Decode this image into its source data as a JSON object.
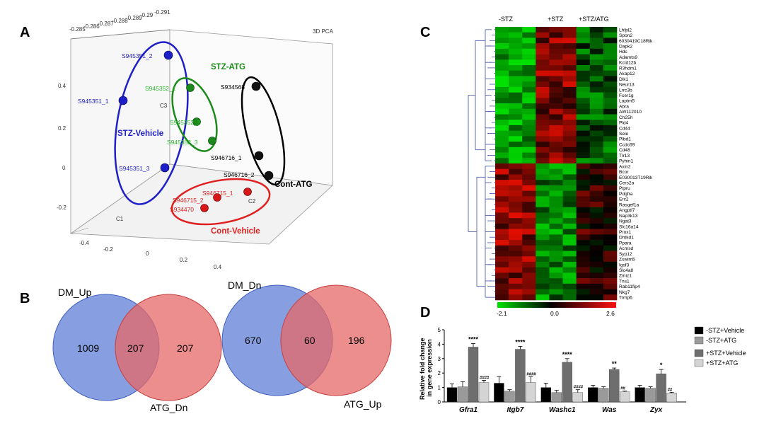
{
  "panels": {
    "A": "A",
    "B": "B",
    "C": "C",
    "D": "D"
  },
  "pca": {
    "title": "3D PCA",
    "top_ticks": [
      "-0.285",
      "-0.286",
      "-0.287",
      "-0.288",
      "-0.289",
      "-0.29",
      "-0.291"
    ],
    "left_ticks": [
      "0.4",
      "0.2",
      "0",
      "-0.2"
    ],
    "bottom_ticks": [
      "-0.4",
      "-0.2",
      "0",
      "0.2",
      "0.4"
    ],
    "axis_labels": {
      "c1": "C1",
      "c2": "C2",
      "c3": "C3"
    },
    "groups": [
      {
        "name": "STZ-Vehicle",
        "color": "#1f1fc8",
        "samples": [
          "S945351_2",
          "S945351_1",
          "S945351_3"
        ]
      },
      {
        "name": "STZ-ATG",
        "color": "#1a8a1a",
        "samples": [
          "S945352_1",
          "S945352_2",
          "S945352_3"
        ]
      },
      {
        "name": "Cont-ATG",
        "color": "#000000",
        "samples": [
          "S934568",
          "S946716_1",
          "S946716_2"
        ]
      },
      {
        "name": "Cont-Vehicle",
        "color": "#e02020",
        "samples": [
          "S946715_2",
          "S946715_1",
          "S934470"
        ]
      }
    ]
  },
  "venn": [
    {
      "left_label": "DM_Up",
      "right_label": "ATG_Dn",
      "left_only": "1009",
      "overlap": "207",
      "right_only": "207"
    },
    {
      "left_label": "DM_Dn",
      "right_label": "ATG_Up",
      "left_only": "670",
      "overlap": "60",
      "right_only": "196"
    }
  ],
  "heatmap": {
    "groups": [
      "-STZ",
      "+STZ",
      "+STZ/ATG"
    ],
    "genes": [
      "Lhfpl2",
      "Spon2",
      "6030419C18Rik",
      "Dapk2",
      "Hdc",
      "Adamts9",
      "Kctd12b",
      "R3hdm1",
      "Akap12",
      "Dlk1",
      "Neur13",
      "Lrrc3b",
      "Fcer1g",
      "Laptm5",
      "Abra",
      "AW112010",
      "Ch25h",
      "Pld4",
      "Cd44",
      "Sele",
      "Plbd1",
      "Ccdc69",
      "Cd48",
      "Tlr13",
      "Pyhin1",
      "Axin2",
      "Bcor",
      "E030013T19Rik",
      "Cers2a",
      "Ptpru",
      "Pdgfra",
      "Erc2",
      "Rasgef1a",
      "Angptl7",
      "Nap3k13",
      "Ngat3",
      "Slc16a14",
      "Prox1",
      "Dhtkd1",
      "Ppara",
      "Acmsd",
      "Syp12",
      "Zswim5",
      "Igsf3",
      "Slc4a8",
      "Zmiz1",
      "Tns1",
      "Rab11fip4",
      "Nkg7",
      "Trmp6"
    ],
    "scale_labels": [
      "-2.1",
      "0.0",
      "2.6"
    ],
    "colors": {
      "low": "#00e000",
      "mid": "#000000",
      "high": "#ff1010"
    }
  },
  "chart_data": {
    "type": "bar",
    "title": "",
    "xlabel": "",
    "ylabel": "Relative fold change in gene expression",
    "ylabel_lines": [
      "Relative fold change",
      "in gene expression"
    ],
    "ylim": [
      0,
      5
    ],
    "yticks": [
      "0",
      "1",
      "2",
      "3",
      "4",
      "5"
    ],
    "categories": [
      "Gfra1",
      "Itgb7",
      "Washc1",
      "Was",
      "Zyx"
    ],
    "series": [
      {
        "name": "-STZ+Vehicle",
        "color": "#000000",
        "values": [
          1.0,
          1.3,
          1.0,
          1.0,
          1.0
        ],
        "errors": [
          0.25,
          0.45,
          0.3,
          0.15,
          0.15
        ]
      },
      {
        "name": "-STZ+ATG",
        "color": "#9a9a9a",
        "values": [
          1.05,
          0.75,
          0.65,
          0.95,
          0.95
        ],
        "errors": [
          0.35,
          0.1,
          0.15,
          0.1,
          0.1
        ]
      },
      {
        "name": "+STZ+Vehicle",
        "color": "#6e6e6e",
        "values": [
          3.8,
          3.65,
          2.75,
          2.25,
          1.95
        ],
        "errors": [
          0.25,
          0.2,
          0.25,
          0.1,
          0.3
        ]
      },
      {
        "name": "+STZ+ATG",
        "color": "#d4d4d4",
        "values": [
          1.35,
          1.35,
          0.65,
          0.7,
          0.62
        ],
        "errors": [
          0.15,
          0.4,
          0.2,
          0.05,
          0.05
        ]
      }
    ],
    "annotations": [
      {
        "category": "Gfra1",
        "series": "+STZ+Vehicle",
        "text": "****"
      },
      {
        "category": "Gfra1",
        "series": "+STZ+ATG",
        "text": "####"
      },
      {
        "category": "Itgb7",
        "series": "+STZ+Vehicle",
        "text": "****"
      },
      {
        "category": "Itgb7",
        "series": "+STZ+ATG",
        "text": "####"
      },
      {
        "category": "Washc1",
        "series": "+STZ+Vehicle",
        "text": "****"
      },
      {
        "category": "Washc1",
        "series": "+STZ+ATG",
        "text": "####"
      },
      {
        "category": "Was",
        "series": "+STZ+Vehicle",
        "text": "**"
      },
      {
        "category": "Was",
        "series": "+STZ+ATG",
        "text": "##"
      },
      {
        "category": "Zyx",
        "series": "+STZ+Vehicle",
        "text": "*"
      },
      {
        "category": "Zyx",
        "series": "+STZ+ATG",
        "text": "##"
      }
    ]
  }
}
